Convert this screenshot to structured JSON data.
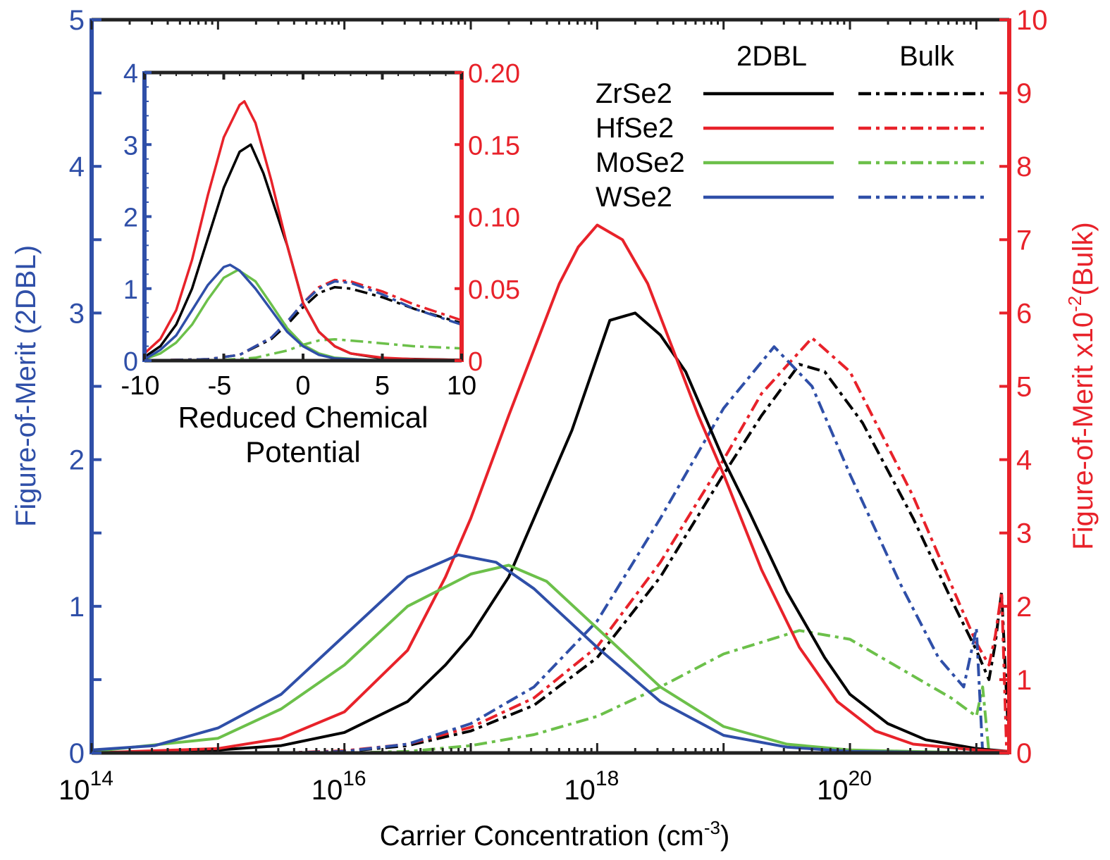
{
  "colors": {
    "ZrSe2": "#000000",
    "HfSe2": "#e8222a",
    "MoSe2": "#6cc04a",
    "WSe2": "#2f4fa8",
    "left_axis": "#2f4fa8",
    "right_axis": "#e8222a"
  },
  "chart_data": [
    {
      "type": "line",
      "title": "",
      "xlabel": {
        "text": "Carrier Concentration (cm",
        "sup": "-3",
        "tail": ")"
      },
      "ylabel": "Figure-of-Merit (2DBL)",
      "y2label": {
        "text": "Figure-of-Merit x10",
        "sup": "-2",
        "tail": "(Bulk)"
      },
      "xscale": "log",
      "xlim_log10": [
        14,
        21.26
      ],
      "ylim": [
        0,
        5
      ],
      "y2lim": [
        0,
        10
      ],
      "xticks": [
        {
          "base": "10",
          "exp": "14",
          "v": 14
        },
        {
          "base": "10",
          "exp": "16",
          "v": 16
        },
        {
          "base": "10",
          "exp": "18",
          "v": 18
        },
        {
          "base": "10",
          "exp": "20",
          "v": 20
        }
      ],
      "yticks": [
        "0",
        "1",
        "2",
        "3",
        "4",
        "5"
      ],
      "y2ticks": [
        "0",
        "1",
        "2",
        "3",
        "4",
        "5",
        "6",
        "7",
        "8",
        "9",
        "10"
      ],
      "legend": {
        "placement": "top-right",
        "col_2dbl": "2DBL",
        "col_bulk": "Bulk",
        "entries": [
          "ZrSe2",
          "HfSe2",
          "MoSe2",
          "WSe2"
        ]
      },
      "series": [
        {
          "name": "ZrSe2",
          "kind": "2DBL",
          "axis": "left",
          "x_log10": [
            14,
            15,
            15.5,
            16,
            16.5,
            16.8,
            17,
            17.3,
            17.5,
            17.8,
            18,
            18.1,
            18.3,
            18.5,
            18.7,
            19,
            19.2,
            19.5,
            19.8,
            20,
            20.3,
            20.6,
            21,
            21.26
          ],
          "y": [
            0,
            0.02,
            0.05,
            0.14,
            0.35,
            0.6,
            0.8,
            1.2,
            1.6,
            2.2,
            2.7,
            2.95,
            3.0,
            2.85,
            2.6,
            2.0,
            1.65,
            1.1,
            0.65,
            0.4,
            0.2,
            0.09,
            0.03,
            0.01
          ]
        },
        {
          "name": "HfSe2",
          "kind": "2DBL",
          "axis": "left",
          "x_log10": [
            14,
            15,
            15.5,
            16,
            16.5,
            16.8,
            17,
            17.3,
            17.5,
            17.7,
            17.85,
            18,
            18.2,
            18.4,
            18.6,
            18.8,
            19,
            19.3,
            19.6,
            19.9,
            20.2,
            20.5,
            21,
            21.26
          ],
          "y": [
            0,
            0.03,
            0.1,
            0.28,
            0.7,
            1.2,
            1.6,
            2.3,
            2.75,
            3.2,
            3.45,
            3.6,
            3.5,
            3.2,
            2.75,
            2.3,
            1.9,
            1.25,
            0.72,
            0.35,
            0.15,
            0.06,
            0.02,
            0.01
          ]
        },
        {
          "name": "MoSe2",
          "kind": "2DBL",
          "axis": "left",
          "x_log10": [
            14,
            15,
            15.5,
            16,
            16.5,
            17,
            17.3,
            17.6,
            18,
            18.5,
            19,
            19.5,
            20,
            21
          ],
          "y": [
            0.01,
            0.1,
            0.3,
            0.6,
            1.0,
            1.22,
            1.28,
            1.17,
            0.85,
            0.45,
            0.18,
            0.06,
            0.02,
            0
          ]
        },
        {
          "name": "WSe2",
          "kind": "2DBL",
          "axis": "left",
          "x_log10": [
            14,
            14.5,
            15,
            15.5,
            16,
            16.5,
            16.9,
            17.2,
            17.5,
            18,
            18.5,
            19,
            19.5,
            20,
            21
          ],
          "y": [
            0.02,
            0.05,
            0.17,
            0.4,
            0.8,
            1.2,
            1.35,
            1.3,
            1.12,
            0.72,
            0.35,
            0.12,
            0.04,
            0.01,
            0
          ]
        },
        {
          "name": "ZrSe2",
          "kind": "Bulk",
          "axis": "right",
          "x_log10": [
            15.5,
            16,
            16.5,
            17,
            17.5,
            18,
            18.5,
            19,
            19.3,
            19.6,
            19.8,
            20.1,
            20.5,
            20.8,
            21.0,
            21.1,
            21.15,
            21.2,
            21.26
          ],
          "y": [
            0,
            0.02,
            0.1,
            0.3,
            0.65,
            1.3,
            2.4,
            3.8,
            4.6,
            5.3,
            5.2,
            4.5,
            3.2,
            2.1,
            1.4,
            1.0,
            1.5,
            2.2,
            0
          ]
        },
        {
          "name": "HfSe2",
          "kind": "Bulk",
          "axis": "right",
          "x_log10": [
            15.5,
            16,
            16.5,
            17,
            17.5,
            18,
            18.5,
            19,
            19.3,
            19.7,
            20,
            20.5,
            20.8,
            21.0,
            21.1,
            21.15,
            21.2,
            21.24
          ],
          "y": [
            0,
            0.03,
            0.12,
            0.35,
            0.75,
            1.45,
            2.6,
            4.0,
            4.9,
            5.66,
            5.2,
            3.5,
            2.3,
            1.5,
            1.2,
            1.6,
            2.2,
            0
          ]
        },
        {
          "name": "MoSe2",
          "kind": "Bulk",
          "axis": "right",
          "x_log10": [
            16,
            16.5,
            17,
            17.5,
            18,
            18.5,
            19,
            19.6,
            20,
            20.5,
            20.8,
            21.0,
            21.05,
            21.1
          ],
          "y": [
            0,
            0.02,
            0.1,
            0.25,
            0.5,
            0.9,
            1.35,
            1.67,
            1.55,
            1.05,
            0.75,
            0.5,
            0.9,
            0
          ]
        },
        {
          "name": "WSe2",
          "kind": "Bulk",
          "axis": "right",
          "x_log10": [
            15.5,
            16,
            16.5,
            17,
            17.5,
            18,
            18.5,
            19,
            19.4,
            19.7,
            20,
            20.4,
            20.7,
            20.9,
            21.0,
            21.05
          ],
          "y": [
            0,
            0.02,
            0.12,
            0.4,
            0.9,
            1.8,
            3.2,
            4.7,
            5.54,
            5.0,
            3.8,
            2.3,
            1.3,
            0.9,
            1.7,
            0
          ]
        }
      ]
    },
    {
      "type": "line",
      "title": "",
      "xlabel_lines": [
        "Reduced Chemical",
        "Potential"
      ],
      "xlim": [
        -10,
        10
      ],
      "ylim": [
        0,
        4
      ],
      "y2lim": [
        0,
        0.2
      ],
      "xticks": [
        "-10",
        "-5",
        "0",
        "5",
        "10"
      ],
      "yticks": [
        "0",
        "1",
        "2",
        "3",
        "4"
      ],
      "y2ticks": [
        "0",
        "0.05",
        "0.10",
        "0.15",
        "0.20"
      ],
      "series": [
        {
          "name": "ZrSe2",
          "kind": "2DBL",
          "axis": "left",
          "x": [
            -10,
            -9,
            -8,
            -7,
            -6,
            -5,
            -4,
            -3.3,
            -2.5,
            -1,
            0,
            1,
            2,
            3,
            5,
            10
          ],
          "y": [
            0.05,
            0.2,
            0.5,
            1.0,
            1.7,
            2.4,
            2.9,
            3.0,
            2.6,
            1.6,
            0.8,
            0.4,
            0.2,
            0.1,
            0.03,
            0.01
          ]
        },
        {
          "name": "HfSe2",
          "kind": "2DBL",
          "axis": "left",
          "x": [
            -10,
            -9,
            -8,
            -7,
            -6,
            -5,
            -4,
            -3.7,
            -3,
            -2,
            -1,
            0,
            1,
            2,
            3,
            5,
            7,
            10
          ],
          "y": [
            0.1,
            0.3,
            0.7,
            1.4,
            2.3,
            3.1,
            3.55,
            3.6,
            3.3,
            2.5,
            1.6,
            0.8,
            0.4,
            0.2,
            0.1,
            0.04,
            0.02,
            0.01
          ]
        },
        {
          "name": "MoSe2",
          "kind": "2DBL",
          "axis": "left",
          "x": [
            -10,
            -9,
            -8,
            -7,
            -6,
            -5,
            -4.1,
            -3,
            -2,
            -1,
            0,
            1,
            2,
            4,
            10
          ],
          "y": [
            0.02,
            0.1,
            0.25,
            0.5,
            0.85,
            1.15,
            1.26,
            1.1,
            0.78,
            0.45,
            0.22,
            0.1,
            0.04,
            0.01,
            0
          ]
        },
        {
          "name": "WSe2",
          "kind": "2DBL",
          "axis": "left",
          "x": [
            -10,
            -9,
            -8,
            -7,
            -6,
            -5,
            -4.6,
            -4,
            -3,
            -2,
            -1,
            0,
            1,
            2,
            4,
            10
          ],
          "y": [
            0.02,
            0.15,
            0.35,
            0.7,
            1.05,
            1.3,
            1.33,
            1.25,
            1.0,
            0.7,
            0.4,
            0.2,
            0.08,
            0.03,
            0.01,
            0
          ]
        },
        {
          "name": "ZrSe2",
          "kind": "Bulk",
          "axis": "right",
          "x": [
            -10,
            -6,
            -4,
            -2,
            -1,
            0,
            1,
            2,
            3,
            5,
            7,
            10
          ],
          "y": [
            0,
            0.001,
            0.004,
            0.015,
            0.025,
            0.037,
            0.047,
            0.051,
            0.05,
            0.044,
            0.036,
            0.026
          ]
        },
        {
          "name": "HfSe2",
          "kind": "Bulk",
          "axis": "right",
          "x": [
            -10,
            -6,
            -4,
            -2,
            -1,
            0,
            1,
            2,
            3,
            5,
            7,
            10
          ],
          "y": [
            0,
            0.001,
            0.004,
            0.016,
            0.027,
            0.04,
            0.051,
            0.056,
            0.055,
            0.048,
            0.039,
            0.028
          ]
        },
        {
          "name": "MoSe2",
          "kind": "Bulk",
          "axis": "right",
          "x": [
            -10,
            -5,
            -3,
            -1,
            0,
            1,
            2,
            4,
            7,
            10
          ],
          "y": [
            0,
            0.0005,
            0.002,
            0.007,
            0.011,
            0.014,
            0.0148,
            0.013,
            0.01,
            0.0085
          ]
        },
        {
          "name": "WSe2",
          "kind": "Bulk",
          "axis": "right",
          "x": [
            -10,
            -6,
            -4,
            -2,
            -1,
            0,
            1,
            2,
            3,
            5,
            7,
            10
          ],
          "y": [
            0,
            0.001,
            0.004,
            0.016,
            0.027,
            0.04,
            0.05,
            0.055,
            0.054,
            0.046,
            0.036,
            0.025
          ]
        }
      ]
    }
  ]
}
